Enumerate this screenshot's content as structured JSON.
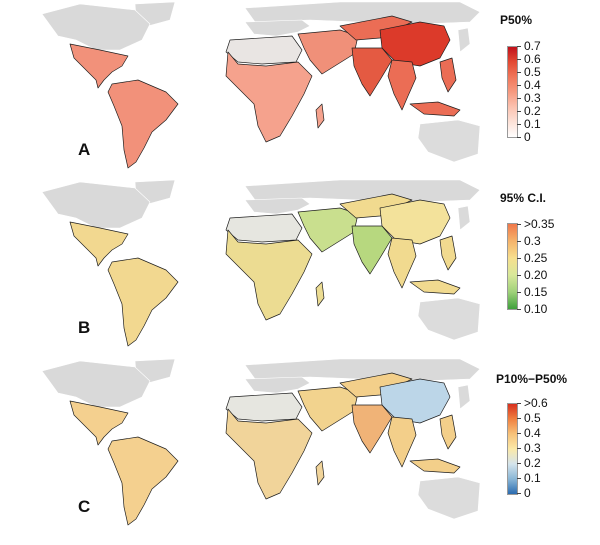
{
  "panels": [
    {
      "letter": "A",
      "legend_title": "P50%",
      "ticks": [
        "0.7",
        "0.6",
        "0.5",
        "0.4",
        "0.3",
        "0.2",
        "0.1",
        "0"
      ],
      "colors": [
        "#c0101a",
        "#e34a33",
        "#f0765a",
        "#f69a80",
        "#fbc2b0",
        "#fde2d8",
        "#ffffff"
      ],
      "region_fills": {
        "americas": "#f2917a",
        "africa": "#f5a28d",
        "middle_east": "#f09079",
        "asia": "#eb6d55",
        "china": "#dc3a2a",
        "india": "#e45a42",
        "sahara": "#e9e5e3",
        "russia": "#d9d9d9"
      }
    },
    {
      "letter": "B",
      "legend_title": "95% C.I.",
      "ticks": [
        ">0.35",
        "0.3",
        "0.25",
        "0.20",
        "0.15",
        "0.10"
      ],
      "colors": [
        "#f0784a",
        "#f5b36b",
        "#f7df8e",
        "#d8e89a",
        "#9fd17a",
        "#3fa03c"
      ],
      "region_fills": {
        "americas": "#f2d890",
        "africa": "#ecdc92",
        "middle_east": "#c9df8e",
        "asia": "#f1da8f",
        "china": "#f3e29b",
        "india": "#b7d87f",
        "sahara": "#e6e6e0",
        "russia": "#d9d9d9"
      }
    },
    {
      "letter": "C",
      "legend_title": "P10%−P50%",
      "ticks": [
        ">0.6",
        "0.5",
        "0.4",
        "0.3",
        "0.2",
        "0.1",
        "0"
      ],
      "colors": [
        "#d7301f",
        "#f08040",
        "#f7c27a",
        "#fbe9a8",
        "#d5e4ec",
        "#8ab6d6",
        "#2b6cb0"
      ],
      "region_fills": {
        "americas": "#f4d08f",
        "africa": "#f1d49a",
        "middle_east": "#f2d38e",
        "asia": "#f3cf8a",
        "china": "#bcd6e8",
        "india": "#f0b377",
        "sahara": "#e6e6e0",
        "russia": "#d9d9d9"
      }
    }
  ]
}
